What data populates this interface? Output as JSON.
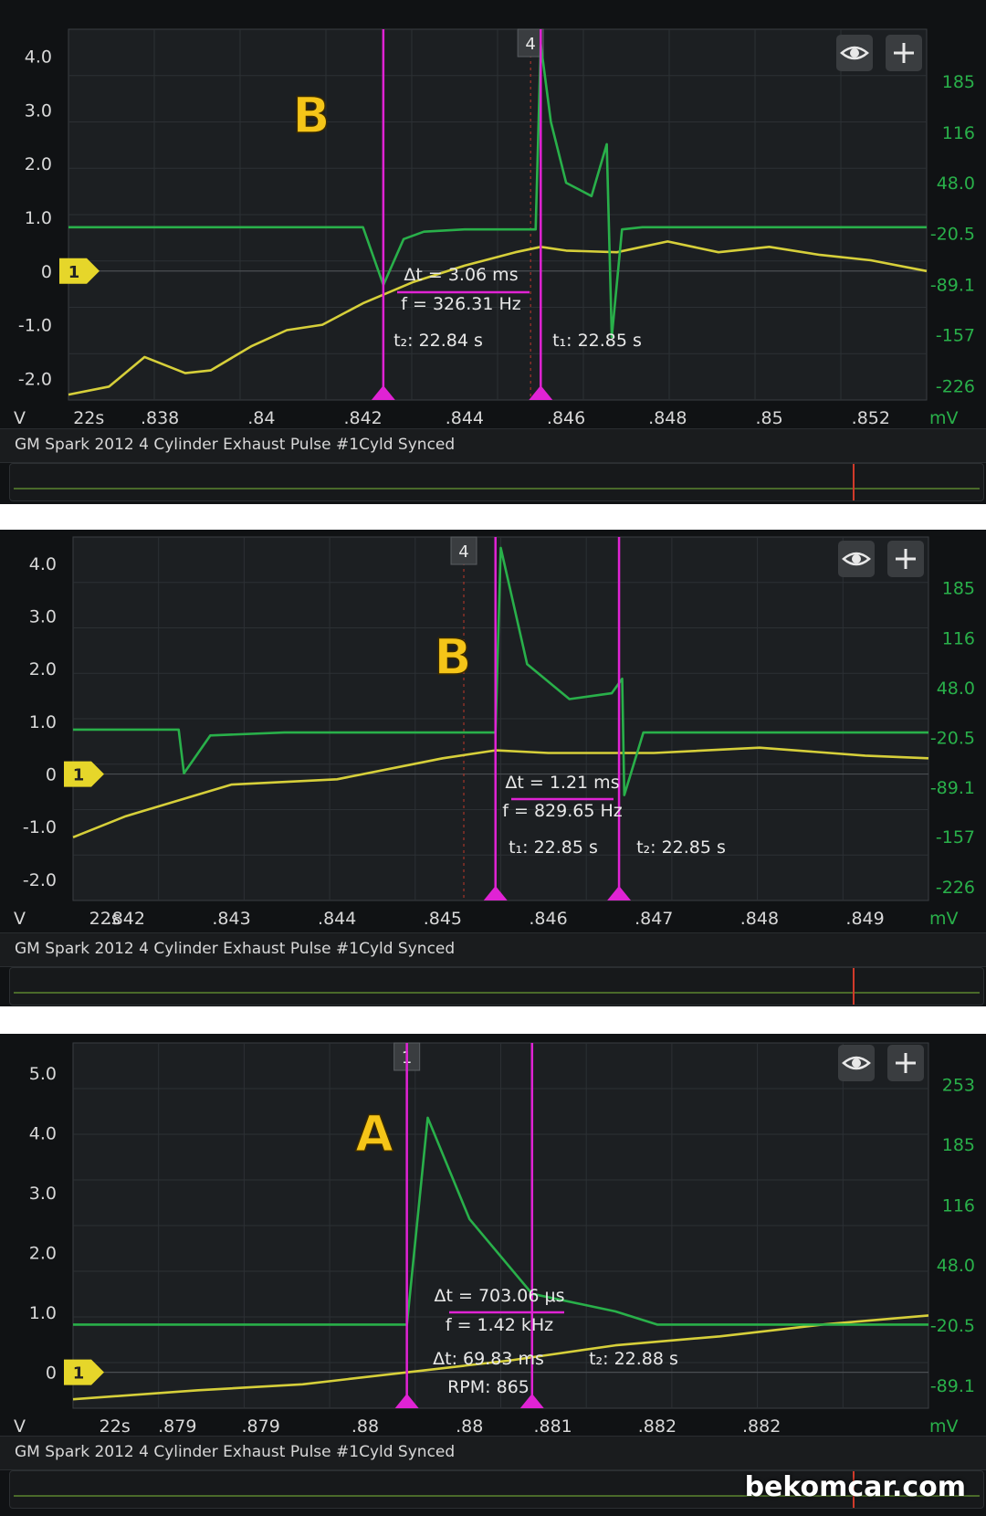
{
  "panels": [
    {
      "caption": "GM Spark 2012 4 Cylinder Exhaust Pulse #1Cyld Synced",
      "letter": "B",
      "left_unit": "V",
      "right_unit": "mV",
      "x_start": "22s",
      "x_ticks": [
        ".838",
        ".84",
        ".842",
        ".844",
        ".846",
        ".848",
        ".85",
        ".852"
      ],
      "left_ticks": [
        "4.0",
        "3.0",
        "2.0",
        "1.0",
        "0",
        "-1.0",
        "-2.0"
      ],
      "right_ticks": [
        "185",
        "116",
        "48.0",
        "-20.5",
        "-89.1",
        "-157",
        "-226"
      ],
      "channel_marker": "1",
      "trigger_label": "4",
      "delta": "Δt = 3.06 ms",
      "freq": "f = 326.31 Hz",
      "cursor_a": "t₂: 22.84 s",
      "cursor_b": "t₁: 22.85 s",
      "overview_marker_frac": 0.866
    },
    {
      "caption": "GM Spark 2012 4 Cylinder Exhaust Pulse #1Cyld Synced",
      "letter": "B",
      "left_unit": "V",
      "right_unit": "mV",
      "x_start": "22s",
      "x_ticks": [
        ".842",
        ".843",
        ".844",
        ".845",
        ".846",
        ".847",
        ".848",
        ".849"
      ],
      "left_ticks": [
        "4.0",
        "3.0",
        "2.0",
        "1.0",
        "0",
        "-1.0",
        "-2.0"
      ],
      "right_ticks": [
        "185",
        "116",
        "48.0",
        "-20.5",
        "-89.1",
        "-157",
        "-226"
      ],
      "channel_marker": "1",
      "trigger_label": "4",
      "delta": "Δt = 1.21 ms",
      "freq": "f = 829.65 Hz",
      "cursor_a": "t₁: 22.85 s",
      "cursor_b": "t₂: 22.85 s",
      "overview_marker_frac": 0.866
    },
    {
      "caption": "GM Spark 2012 4 Cylinder Exhaust Pulse #1Cyld Synced",
      "letter": "A",
      "left_unit": "V",
      "right_unit": "mV",
      "x_start": "22s",
      "x_ticks": [
        ".879",
        ".879",
        ".88",
        ".88",
        ".881",
        ".882",
        ".882"
      ],
      "left_ticks": [
        "5.0",
        "4.0",
        "3.0",
        "2.0",
        "1.0",
        "0"
      ],
      "right_ticks": [
        "253",
        "185",
        "116",
        "48.0",
        "-20.5",
        "-89.1"
      ],
      "channel_marker": "1",
      "trigger_label": "1",
      "delta": "Δt = 703.06 μs",
      "freq": "f = 1.42 kHz",
      "cursor_a": "Δt: 69.83 ms",
      "cursor_b": "t₂: 22.88 s",
      "rpm": "RPM: 865",
      "overview_marker_frac": 0.866
    }
  ],
  "watermark": "bekomcar.com",
  "colors": {
    "green": "#29b04a",
    "yellow": "#d6cf3a",
    "magenta": "#e023d4",
    "letter": "#f5c518"
  },
  "chart_data": [
    {
      "type": "line",
      "title": "",
      "xlabel": "",
      "ylabel": "V",
      "ylabel_right": "mV",
      "x_ticks": [
        "22s",
        ".838",
        ".84",
        ".842",
        ".844",
        ".846",
        ".848",
        ".85",
        ".852"
      ],
      "ylim": [
        -2.4,
        4.5
      ],
      "grid": true,
      "series": [
        {
          "name": "",
          "axis": "left",
          "color": "#d6cf3a",
          "x": [
            22.8362,
            22.837,
            22.8377,
            22.8385,
            22.839,
            22.8398,
            22.8405,
            22.8412,
            22.842,
            22.843,
            22.844,
            22.845,
            22.8455,
            22.846,
            22.847,
            22.848,
            22.849,
            22.85,
            22.851,
            22.852,
            22.8531
          ],
          "values": [
            -2.3,
            -2.15,
            -1.6,
            -1.9,
            -1.85,
            -1.4,
            -1.1,
            -1.0,
            -0.6,
            -0.2,
            0.1,
            0.35,
            0.45,
            0.38,
            0.35,
            0.55,
            0.35,
            0.45,
            0.3,
            0.2,
            0.0
          ]
        },
        {
          "name": "",
          "axis": "right",
          "color": "#29b04a",
          "x": [
            22.8362,
            22.842,
            22.8424,
            22.8428,
            22.8432,
            22.844,
            22.8454,
            22.8455,
            22.8457,
            22.846,
            22.8465,
            22.8468,
            22.8469,
            22.8471,
            22.8475,
            22.8531
          ],
          "values": [
            -12,
            -12,
            -90,
            -28,
            -18,
            -15,
            -15,
            235,
            130,
            48,
            30,
            100,
            -160,
            -15,
            -12,
            -12
          ]
        }
      ]
    },
    {
      "type": "line",
      "title": "",
      "xlabel": "",
      "ylabel": "V",
      "ylabel_right": "mV",
      "x_ticks": [
        "22s",
        ".842",
        ".843",
        ".844",
        ".845",
        ".846",
        ".847",
        ".848",
        ".849"
      ],
      "ylim": [
        -2.4,
        4.5
      ],
      "grid": true,
      "series": [
        {
          "name": "",
          "axis": "left",
          "color": "#d6cf3a",
          "x": [
            22.8415,
            22.842,
            22.843,
            22.844,
            22.845,
            22.8455,
            22.846,
            22.847,
            22.848,
            22.849,
            22.8496
          ],
          "values": [
            -1.2,
            -0.8,
            -0.2,
            -0.1,
            0.3,
            0.45,
            0.4,
            0.4,
            0.5,
            0.35,
            0.3
          ]
        },
        {
          "name": "",
          "axis": "right",
          "color": "#29b04a",
          "x": [
            22.8415,
            22.8425,
            22.84255,
            22.8428,
            22.8435,
            22.8455,
            22.84555,
            22.8458,
            22.8462,
            22.8466,
            22.8467,
            22.84672,
            22.8469,
            22.8496
          ],
          "values": [
            -10,
            -10,
            -70,
            -18,
            -14,
            -14,
            240,
            80,
            32,
            40,
            60,
            -100,
            -14,
            -14
          ]
        }
      ]
    },
    {
      "type": "line",
      "title": "",
      "xlabel": "",
      "ylabel": "V",
      "ylabel_right": "mV",
      "x_ticks": [
        "22s",
        ".879",
        ".879",
        ".88",
        ".88",
        ".881",
        ".882",
        ".882"
      ],
      "ylim": [
        -0.6,
        5.5
      ],
      "grid": true,
      "series": [
        {
          "name": "",
          "axis": "left",
          "color": "#d6cf3a",
          "x": [
            22.8784,
            22.879,
            22.8795,
            22.88,
            22.8805,
            22.881,
            22.8815,
            22.882,
            22.8825
          ],
          "values": [
            -0.45,
            -0.3,
            -0.2,
            0.0,
            0.2,
            0.45,
            0.6,
            0.8,
            0.95
          ]
        },
        {
          "name": "",
          "axis": "right",
          "color": "#29b04a",
          "x": [
            22.8784,
            22.88,
            22.8801,
            22.8803,
            22.8806,
            22.881,
            22.8812,
            22.8815,
            22.8825
          ],
          "values": [
            -20,
            -20,
            215,
            100,
            15,
            -5,
            -20,
            -20,
            -20
          ]
        }
      ]
    }
  ]
}
